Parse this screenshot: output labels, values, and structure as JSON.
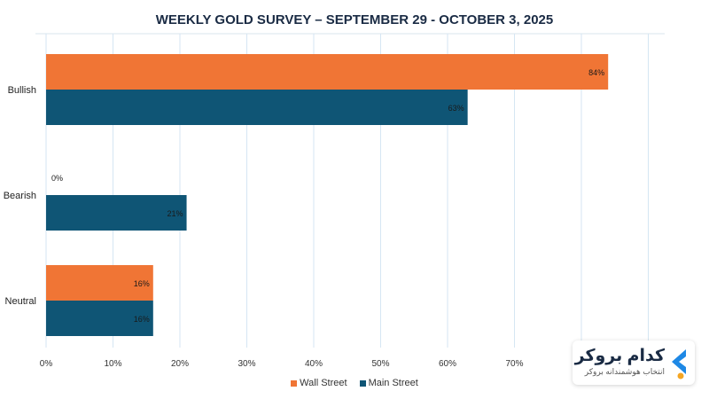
{
  "chart_data": {
    "type": "bar",
    "orientation": "horizontal",
    "title": "WEEKLY GOLD SURVEY – SEPTEMBER 29 - OCTOBER 3, 2025",
    "categories": [
      "Bullish",
      "Bearish",
      "Neutral"
    ],
    "series": [
      {
        "name": "Wall Street",
        "values": [
          84,
          0,
          16
        ],
        "color": "#F07535"
      },
      {
        "name": "Main Street",
        "values": [
          63,
          21,
          16
        ],
        "color": "#0F5575"
      }
    ],
    "value_suffix": "%",
    "xlim": [
      0,
      90
    ],
    "x_ticks": [
      "0%",
      "10%",
      "20%",
      "30%",
      "40%",
      "50%",
      "60%",
      "70%"
    ],
    "grid": true,
    "legend_position": "bottom"
  },
  "legend": {
    "wall_street": "Wall Street",
    "main_street": "Main Street"
  },
  "logo": {
    "name": "کدام بروکر",
    "tagline": "انتخاب هوشمندانه بروکر",
    "icon": "chevron-left-icon",
    "accent": "#1E88E5",
    "dot": "#F5A623"
  }
}
